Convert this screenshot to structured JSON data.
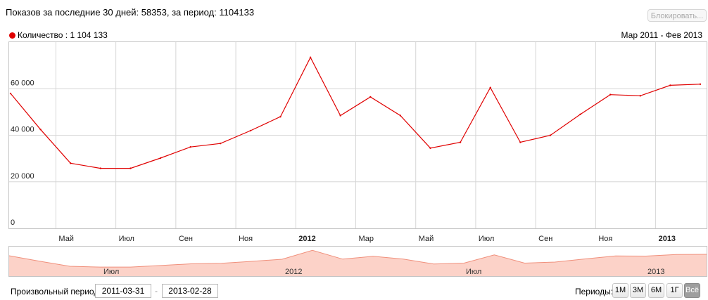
{
  "header": {
    "summary": "Показов за последние 30 дней: 58353, за период: 1104133",
    "block_button": "Блокировать..."
  },
  "legend": {
    "series_label": "Количество : 1 104 133",
    "range_label": "Мар 2011 - Фев 2013",
    "series_color": "#e00000"
  },
  "chart_data": {
    "type": "line",
    "x": [
      "2011-03",
      "2011-04",
      "2011-05",
      "2011-06",
      "2011-07",
      "2011-08",
      "2011-09",
      "2011-10",
      "2011-11",
      "2011-12",
      "2012-01",
      "2012-02",
      "2012-03",
      "2012-04",
      "2012-05",
      "2012-06",
      "2012-07",
      "2012-08",
      "2012-09",
      "2012-10",
      "2012-11",
      "2012-12",
      "2013-01",
      "2013-02"
    ],
    "series": [
      {
        "name": "Количество",
        "color": "#e00000",
        "values": [
          58000,
          42500,
          28000,
          25800,
          25800,
          30200,
          35000,
          36500,
          42000,
          48000,
          73500,
          48500,
          56500,
          48500,
          34500,
          37000,
          60500,
          37000,
          40000,
          49000,
          57500,
          57000,
          61500,
          62000
        ]
      }
    ],
    "y_ticks": [
      {
        "value": 0,
        "label": "0"
      },
      {
        "value": 20000,
        "label": "20 000"
      },
      {
        "value": 40000,
        "label": "40 000"
      },
      {
        "value": 60000,
        "label": "60 000"
      }
    ],
    "x_ticks": [
      {
        "label": "Май",
        "bold": false
      },
      {
        "label": "Июл",
        "bold": false
      },
      {
        "label": "Сен",
        "bold": false
      },
      {
        "label": "Ноя",
        "bold": false
      },
      {
        "label": "2012",
        "bold": true
      },
      {
        "label": "Мар",
        "bold": false
      },
      {
        "label": "Май",
        "bold": false
      },
      {
        "label": "Июл",
        "bold": false
      },
      {
        "label": "Сен",
        "bold": false
      },
      {
        "label": "Ноя",
        "bold": false
      },
      {
        "label": "2013",
        "bold": true
      }
    ],
    "ylim": [
      0,
      80000
    ],
    "grid": true,
    "navigator_labels": [
      "Июл",
      "2012",
      "Июл",
      "2013"
    ],
    "title": "",
    "xlabel": "",
    "ylabel": ""
  },
  "controls": {
    "period_label": "Произвольный период:",
    "date_from": "2011-03-31",
    "date_to": "2013-02-28",
    "dash": "-",
    "periods_label": "Периоды:",
    "period_buttons": [
      {
        "label": "1М",
        "active": false
      },
      {
        "label": "3М",
        "active": false
      },
      {
        "label": "6М",
        "active": false
      },
      {
        "label": "1Г",
        "active": false
      },
      {
        "label": "Всё",
        "active": true
      }
    ]
  }
}
